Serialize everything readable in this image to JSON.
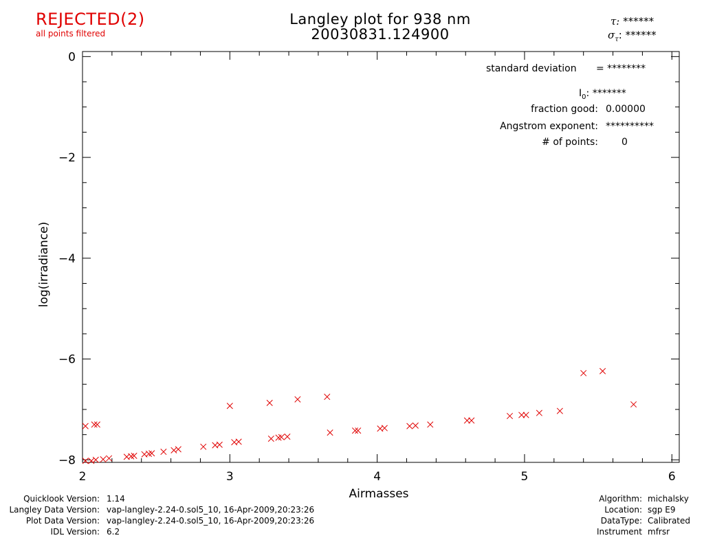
{
  "header": {
    "status": "REJECTED(2)",
    "status_note": "all points filtered",
    "title_line1": "Langley plot for 938 nm",
    "title_line2": "20030831.124900",
    "tau_label": "τ:",
    "tau_value": "******",
    "sigma_label": "σ",
    "sigma_sub": "τ",
    "sigma_colon": ":",
    "sigma_value": "******"
  },
  "stats": {
    "std_label": "standard deviation",
    "std_value": "= ********",
    "i0_label": "I",
    "i0_sub": "0",
    "i0_colon": ":",
    "i0_value": "*******",
    "fraction_label": "fraction good:",
    "fraction_value": "0.00000",
    "angstrom_label": "Angstrom exponent:",
    "angstrom_value": "**********",
    "points_label": "# of points:",
    "points_value": "0"
  },
  "footer_left": [
    {
      "label": "Quicklook Version:",
      "value": "1.14"
    },
    {
      "label": "Langley Data Version:",
      "value": "vap-langley-2.24-0.sol5_10, 16-Apr-2009,20:23:26"
    },
    {
      "label": "Plot Data Version:",
      "value": "vap-langley-2.24-0.sol5_10, 16-Apr-2009,20:23:26"
    },
    {
      "label": "IDL Version:",
      "value": "6.2"
    }
  ],
  "footer_right": [
    {
      "label": "Algorithm:",
      "value": "michalsky"
    },
    {
      "label": "Location:",
      "value": "sgp E9"
    },
    {
      "label": "DataType:",
      "value": "Calibrated"
    },
    {
      "label": "Instrument",
      "value": "mfrsr"
    }
  ],
  "colors": {
    "points": "#e00000",
    "axes": "#000000"
  },
  "chart_data": {
    "type": "scatter",
    "xlabel": "Airmasses",
    "ylabel": "log(irradiance)",
    "xlim": [
      2,
      6.05
    ],
    "ylim": [
      -8.05,
      0.1
    ],
    "xticks": [
      2,
      3,
      4,
      5,
      6
    ],
    "yticks": [
      0,
      -2,
      -4,
      -6,
      -8
    ],
    "xtick_labels": [
      "2",
      "3",
      "4",
      "5",
      "6"
    ],
    "ytick_labels": [
      "0",
      "−2",
      "−4",
      "−6",
      "−8"
    ],
    "marker": "x",
    "series": [
      {
        "points": [
          [
            2.02,
            -7.33
          ],
          [
            2.08,
            -7.3
          ],
          [
            2.1,
            -7.3
          ],
          [
            2.02,
            -8.02
          ],
          [
            2.06,
            -8.02
          ],
          [
            2.09,
            -8.0
          ],
          [
            2.14,
            -7.99
          ],
          [
            2.18,
            -7.97
          ],
          [
            2.3,
            -7.94
          ],
          [
            2.33,
            -7.93
          ],
          [
            2.35,
            -7.92
          ],
          [
            2.42,
            -7.89
          ],
          [
            2.45,
            -7.88
          ],
          [
            2.47,
            -7.87
          ],
          [
            2.55,
            -7.84
          ],
          [
            2.62,
            -7.81
          ],
          [
            2.65,
            -7.79
          ],
          [
            2.82,
            -7.74
          ],
          [
            2.9,
            -7.71
          ],
          [
            2.93,
            -7.7
          ],
          [
            3.0,
            -6.93
          ],
          [
            3.03,
            -7.65
          ],
          [
            3.06,
            -7.64
          ],
          [
            3.27,
            -6.87
          ],
          [
            3.28,
            -7.58
          ],
          [
            3.33,
            -7.56
          ],
          [
            3.35,
            -7.55
          ],
          [
            3.39,
            -7.54
          ],
          [
            3.46,
            -6.8
          ],
          [
            3.66,
            -6.75
          ],
          [
            3.68,
            -7.46
          ],
          [
            3.85,
            -7.42
          ],
          [
            3.87,
            -7.42
          ],
          [
            4.02,
            -7.38
          ],
          [
            4.05,
            -7.37
          ],
          [
            4.22,
            -7.33
          ],
          [
            4.26,
            -7.32
          ],
          [
            4.36,
            -7.3
          ],
          [
            4.61,
            -7.22
          ],
          [
            4.64,
            -7.22
          ],
          [
            4.9,
            -7.13
          ],
          [
            4.98,
            -7.11
          ],
          [
            5.01,
            -7.11
          ],
          [
            5.1,
            -7.07
          ],
          [
            5.24,
            -7.03
          ],
          [
            5.4,
            -6.28
          ],
          [
            5.53,
            -6.24
          ],
          [
            5.74,
            -6.9
          ]
        ]
      }
    ]
  }
}
